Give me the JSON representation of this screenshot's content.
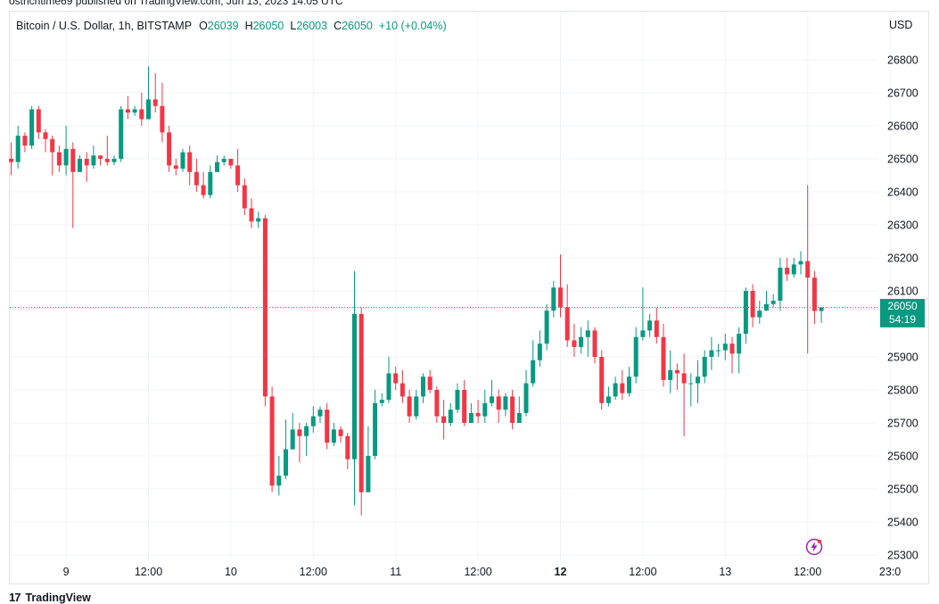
{
  "attribution": "ostrichtime69 published on TradingView.com, Jun 13, 2023 14:05 UTC",
  "legend": {
    "symbol": "Bitcoin / U.S. Dollar, 1h, BITSTAMP",
    "open_key": "O",
    "open": "26039",
    "high_key": "H",
    "high": "26050",
    "low_key": "L",
    "low": "26003",
    "close_key": "C",
    "close": "26050",
    "change": "+10 (+0.04%)"
  },
  "currency": "USD",
  "last_price": {
    "price": "26050",
    "countdown": "54:19"
  },
  "footer": {
    "brand": "TradingView",
    "brand_mark": "17"
  },
  "colors": {
    "up": "#089981",
    "down": "#f23645",
    "grid": "#f0f3fa",
    "text": "#131722"
  },
  "chart_data": {
    "type": "candlestick",
    "symbol": "Bitcoin / U.S. Dollar",
    "interval": "1h",
    "exchange": "BITSTAMP",
    "ylim": [
      25270,
      26880
    ],
    "y_ticks": [
      "26800",
      "26700",
      "26600",
      "26500",
      "26400",
      "26300",
      "26200",
      "26100",
      "25900",
      "25800",
      "25700",
      "25600",
      "25500",
      "25400",
      "25300"
    ],
    "x_ticks": [
      {
        "label": "9",
        "i": 8,
        "bold": false
      },
      {
        "label": "12:00",
        "i": 20,
        "bold": false
      },
      {
        "label": "10",
        "i": 32,
        "bold": false
      },
      {
        "label": "12:00",
        "i": 44,
        "bold": false
      },
      {
        "label": "11",
        "i": 56,
        "bold": false
      },
      {
        "label": "12:00",
        "i": 68,
        "bold": false
      },
      {
        "label": "12",
        "i": 80,
        "bold": true
      },
      {
        "label": "12:00",
        "i": 92,
        "bold": false
      },
      {
        "label": "13",
        "i": 104,
        "bold": false
      },
      {
        "label": "12:00",
        "i": 116,
        "bold": false
      },
      {
        "label": "23:0",
        "i": 128,
        "bold": false
      }
    ],
    "grid": true,
    "last_price_line": 26050,
    "candles": [
      [
        26500,
        26490,
        26550,
        26450
      ],
      [
        26490,
        26570,
        26600,
        26470
      ],
      [
        26570,
        26540,
        26580,
        26520
      ],
      [
        26540,
        26650,
        26660,
        26530
      ],
      [
        26650,
        26580,
        26660,
        26560
      ],
      [
        26580,
        26560,
        26590,
        26520
      ],
      [
        26560,
        26520,
        26570,
        26450
      ],
      [
        26520,
        26480,
        26540,
        26460
      ],
      [
        26480,
        26530,
        26600,
        26450
      ],
      [
        26530,
        26460,
        26550,
        26290
      ],
      [
        26460,
        26500,
        26510,
        26470
      ],
      [
        26500,
        26480,
        26520,
        26430
      ],
      [
        26480,
        26510,
        26540,
        26470
      ],
      [
        26510,
        26500,
        26510,
        26480
      ],
      [
        26500,
        26490,
        26570,
        26480
      ],
      [
        26490,
        26500,
        26510,
        26480
      ],
      [
        26500,
        26650,
        26660,
        26490
      ],
      [
        26650,
        26640,
        26690,
        26620
      ],
      [
        26640,
        26650,
        26660,
        26630
      ],
      [
        26650,
        26620,
        26700,
        26600
      ],
      [
        26620,
        26680,
        26780,
        26620
      ],
      [
        26680,
        26660,
        26760,
        26640
      ],
      [
        26660,
        26580,
        26730,
        26550
      ],
      [
        26580,
        26480,
        26600,
        26460
      ],
      [
        26480,
        26470,
        26500,
        26450
      ],
      [
        26470,
        26520,
        26530,
        26460
      ],
      [
        26520,
        26460,
        26540,
        26420
      ],
      [
        26460,
        26420,
        26500,
        26400
      ],
      [
        26420,
        26390,
        26460,
        26380
      ],
      [
        26390,
        26460,
        26480,
        26380
      ],
      [
        26460,
        26490,
        26510,
        26460
      ],
      [
        26490,
        26500,
        26510,
        26480
      ],
      [
        26500,
        26480,
        26500,
        26470
      ],
      [
        26480,
        26420,
        26530,
        26400
      ],
      [
        26420,
        26350,
        26440,
        26330
      ],
      [
        26350,
        26310,
        26380,
        26290
      ],
      [
        26310,
        26320,
        26340,
        26290
      ],
      [
        26320,
        25780,
        26330,
        25750
      ],
      [
        25780,
        25510,
        25810,
        25490
      ],
      [
        25510,
        25540,
        25600,
        25480
      ],
      [
        25540,
        25620,
        25710,
        25530
      ],
      [
        25620,
        25680,
        25730,
        25620
      ],
      [
        25680,
        25660,
        25700,
        25580
      ],
      [
        25660,
        25690,
        25700,
        25600
      ],
      [
        25690,
        25720,
        25750,
        25670
      ],
      [
        25720,
        25740,
        25750,
        25700
      ],
      [
        25740,
        25640,
        25760,
        25620
      ],
      [
        25640,
        25680,
        25700,
        25630
      ],
      [
        25680,
        25660,
        25690,
        25640
      ],
      [
        25660,
        25590,
        25670,
        25560
      ],
      [
        25590,
        26030,
        26160,
        25450
      ],
      [
        26030,
        25490,
        26050,
        25420
      ],
      [
        25490,
        25600,
        25690,
        25580
      ],
      [
        25600,
        25760,
        25800,
        25590
      ],
      [
        25760,
        25770,
        25790,
        25750
      ],
      [
        25770,
        25850,
        25900,
        25760
      ],
      [
        25850,
        25820,
        25870,
        25800
      ],
      [
        25820,
        25780,
        25860,
        25760
      ],
      [
        25780,
        25720,
        25800,
        25700
      ],
      [
        25720,
        25780,
        25800,
        25710
      ],
      [
        25780,
        25840,
        25850,
        25760
      ],
      [
        25840,
        25800,
        25860,
        25790
      ],
      [
        25800,
        25720,
        25810,
        25700
      ],
      [
        25720,
        25700,
        25770,
        25650
      ],
      [
        25700,
        25740,
        25760,
        25690
      ],
      [
        25740,
        25800,
        25820,
        25730
      ],
      [
        25800,
        25700,
        25830,
        25690
      ],
      [
        25700,
        25730,
        25760,
        25700
      ],
      [
        25730,
        25720,
        25770,
        25700
      ],
      [
        25720,
        25760,
        25800,
        25700
      ],
      [
        25760,
        25780,
        25830,
        25750
      ],
      [
        25780,
        25740,
        25800,
        25700
      ],
      [
        25740,
        25780,
        25790,
        25720
      ],
      [
        25780,
        25700,
        25800,
        25680
      ],
      [
        25700,
        25730,
        25780,
        25700
      ],
      [
        25730,
        25820,
        25860,
        25720
      ],
      [
        25820,
        25890,
        25950,
        25810
      ],
      [
        25890,
        25940,
        25980,
        25870
      ],
      [
        25940,
        26040,
        26060,
        25920
      ],
      [
        26040,
        26110,
        26130,
        26020
      ],
      [
        26110,
        26050,
        26210,
        26020
      ],
      [
        26050,
        25950,
        26120,
        25930
      ],
      [
        25950,
        25930,
        26000,
        25900
      ],
      [
        25930,
        25960,
        25990,
        25910
      ],
      [
        25960,
        25980,
        26010,
        25900
      ],
      [
        25980,
        25900,
        25990,
        25880
      ],
      [
        25900,
        25760,
        25920,
        25740
      ],
      [
        25760,
        25780,
        25810,
        25750
      ],
      [
        25780,
        25820,
        25840,
        25770
      ],
      [
        25820,
        25790,
        25860,
        25770
      ],
      [
        25790,
        25840,
        25870,
        25780
      ],
      [
        25840,
        25960,
        25990,
        25820
      ],
      [
        25960,
        25980,
        26110,
        25950
      ],
      [
        25980,
        26010,
        26030,
        25960
      ],
      [
        26010,
        25960,
        26050,
        25940
      ],
      [
        25960,
        25830,
        26000,
        25810
      ],
      [
        25830,
        25860,
        25920,
        25790
      ],
      [
        25860,
        25850,
        25880,
        25800
      ],
      [
        25850,
        25820,
        25910,
        25660
      ],
      [
        25820,
        25820,
        25850,
        25750
      ],
      [
        25820,
        25840,
        25890,
        25760
      ],
      [
        25840,
        25900,
        25920,
        25820
      ],
      [
        25900,
        25920,
        25960,
        25860
      ],
      [
        25920,
        25920,
        25940,
        25900
      ],
      [
        25920,
        25940,
        25970,
        25890
      ],
      [
        25940,
        25910,
        25960,
        25850
      ],
      [
        25910,
        25970,
        25990,
        25850
      ],
      [
        25970,
        26100,
        26110,
        25940
      ],
      [
        26100,
        26020,
        26120,
        25990
      ],
      [
        26020,
        26040,
        26070,
        26000
      ],
      [
        26040,
        26060,
        26100,
        26040
      ],
      [
        26060,
        26070,
        26090,
        26050
      ],
      [
        26070,
        26170,
        26200,
        26040
      ],
      [
        26170,
        26150,
        26200,
        26130
      ],
      [
        26150,
        26180,
        26200,
        26140
      ],
      [
        26180,
        26190,
        26220,
        26150
      ],
      [
        26190,
        26140,
        26420,
        25910
      ],
      [
        26140,
        26039,
        26160,
        26000
      ],
      [
        26039,
        26050,
        26050,
        26003
      ]
    ]
  }
}
